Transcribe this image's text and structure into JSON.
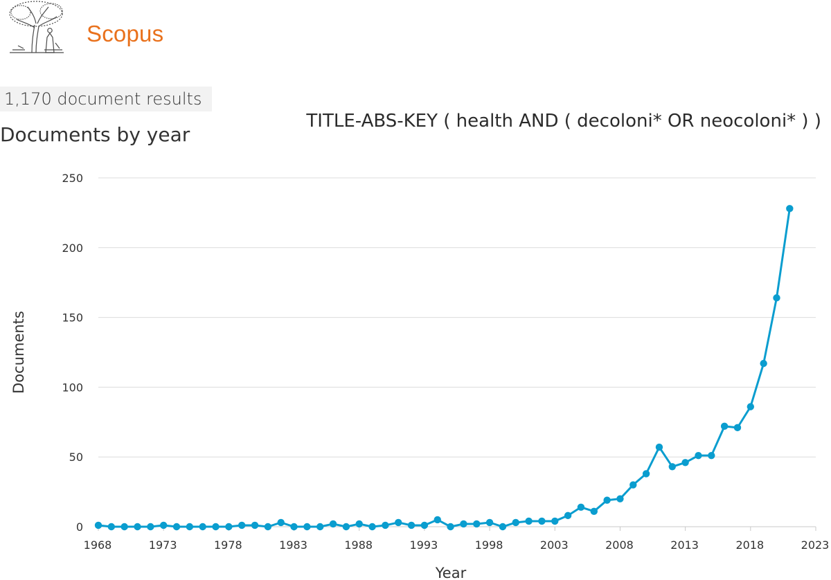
{
  "header": {
    "brand": "Scopus",
    "logo_icon": "elsevier-tree-logo-icon",
    "brand_color": "#e9711c"
  },
  "results_label": "1,170 document results",
  "query": "TITLE-ABS-KEY ( health  AND  ( decoloni*  OR  neocoloni* ) )",
  "chart_data": {
    "type": "line",
    "title": "Documents by year",
    "xlabel": "Year",
    "ylabel": "Documents",
    "xlim": [
      1968,
      2023
    ],
    "ylim": [
      0,
      250
    ],
    "yticks": [
      0,
      50,
      100,
      150,
      200,
      250
    ],
    "xticks": [
      1968,
      1973,
      1978,
      1983,
      1988,
      1993,
      1998,
      2003,
      2008,
      2013,
      2018,
      2023
    ],
    "grid": true,
    "line_color": "#0a9dcf",
    "series": [
      {
        "x": [
          1968,
          1969,
          1970,
          1971,
          1972,
          1973,
          1974,
          1975,
          1976,
          1977,
          1978,
          1979,
          1980,
          1981,
          1982,
          1983,
          1984,
          1985,
          1986,
          1987,
          1988,
          1989,
          1990,
          1991,
          1992,
          1993,
          1994,
          1995,
          1996,
          1997,
          1998,
          1999,
          2000,
          2001,
          2002,
          2003,
          2004,
          2005,
          2006,
          2007,
          2008,
          2009,
          2010,
          2011,
          2012,
          2013,
          2014,
          2015,
          2016,
          2017,
          2018,
          2019,
          2020,
          2021
        ],
        "values": [
          1,
          0,
          0,
          0,
          0,
          1,
          0,
          0,
          0,
          0,
          0,
          1,
          1,
          0,
          3,
          0,
          0,
          0,
          2,
          0,
          2,
          0,
          1,
          3,
          1,
          1,
          5,
          0,
          2,
          2,
          3,
          0,
          3,
          4,
          4,
          4,
          8,
          14,
          11,
          19,
          20,
          30,
          38,
          57,
          43,
          46,
          51,
          51,
          72,
          71,
          86,
          117,
          164,
          228
        ]
      }
    ]
  }
}
